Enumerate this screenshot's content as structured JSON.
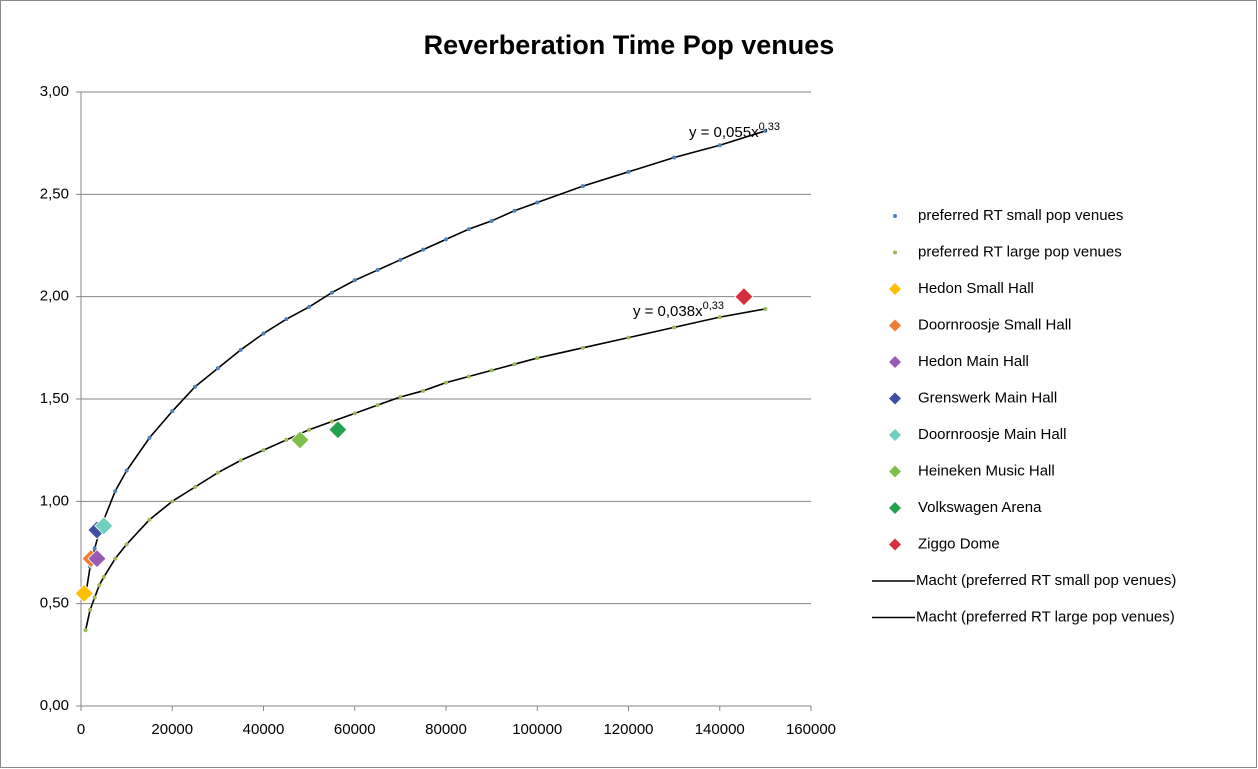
{
  "chart_data": {
    "type": "scatter",
    "title": "Reverberation Time Pop venues",
    "xlim": [
      0,
      160000
    ],
    "xticks": [
      0,
      20000,
      40000,
      60000,
      80000,
      100000,
      120000,
      140000,
      160000
    ],
    "ylim": [
      0,
      3
    ],
    "yticks": [
      {
        "value": 0,
        "label": "0,00"
      },
      {
        "value": 0.5,
        "label": "0,50"
      },
      {
        "value": 1,
        "label": "1,00"
      },
      {
        "value": 1.5,
        "label": "1,50"
      },
      {
        "value": 2,
        "label": "2,00"
      },
      {
        "value": 2.5,
        "label": "2,50"
      },
      {
        "value": 3,
        "label": "3,00"
      }
    ],
    "grid": true,
    "legend": "right",
    "annotations": [
      {
        "text": "y = 0,055x",
        "exponent": "0,33"
      },
      {
        "text": "y = 0,038x",
        "exponent": "0,33"
      }
    ],
    "series": [
      {
        "name": "preferred RT small pop venues",
        "color": "#4f81bd",
        "marker": "dot",
        "x": [
          1000,
          2000,
          3000,
          4000,
          5000,
          7500,
          10000,
          15000,
          20000,
          25000,
          30000,
          35000,
          40000,
          45000,
          50000,
          55000,
          60000,
          65000,
          70000,
          75000,
          80000,
          85000,
          90000,
          95000,
          100000,
          110000,
          120000,
          130000,
          140000,
          150000
        ],
        "values": [
          0.54,
          0.68,
          0.77,
          0.85,
          0.91,
          1.05,
          1.15,
          1.31,
          1.44,
          1.56,
          1.65,
          1.74,
          1.82,
          1.89,
          1.95,
          2.02,
          2.08,
          2.13,
          2.18,
          2.23,
          2.28,
          2.33,
          2.37,
          2.42,
          2.46,
          2.54,
          2.61,
          2.68,
          2.74,
          2.81
        ]
      },
      {
        "name": "preferred RT large pop venues",
        "color": "#9bbb59",
        "marker": "dot",
        "x": [
          1000,
          2000,
          3000,
          4000,
          5000,
          7500,
          10000,
          15000,
          20000,
          25000,
          30000,
          35000,
          40000,
          45000,
          50000,
          55000,
          60000,
          65000,
          70000,
          75000,
          80000,
          85000,
          90000,
          95000,
          100000,
          110000,
          120000,
          130000,
          140000,
          150000
        ],
        "values": [
          0.37,
          0.47,
          0.53,
          0.59,
          0.63,
          0.72,
          0.79,
          0.91,
          1.0,
          1.07,
          1.14,
          1.2,
          1.25,
          1.3,
          1.35,
          1.39,
          1.43,
          1.47,
          1.51,
          1.54,
          1.58,
          1.61,
          1.64,
          1.67,
          1.7,
          1.75,
          1.8,
          1.85,
          1.9,
          1.94
        ]
      },
      {
        "name": "Hedon Small Hall",
        "color": "#ffc000",
        "marker": "diamond",
        "x": [
          700
        ],
        "values": [
          0.55
        ]
      },
      {
        "name": "Doornroosje Small Hall",
        "color": "#ed7d31",
        "marker": "diamond",
        "x": [
          2200
        ],
        "values": [
          0.72
        ]
      },
      {
        "name": "Hedon Main Hall",
        "color": "#9b59b6",
        "marker": "diamond",
        "x": [
          3500
        ],
        "values": [
          0.72
        ]
      },
      {
        "name": "Grenswerk Main Hall",
        "color": "#3e4f9f",
        "marker": "diamond",
        "x": [
          3500
        ],
        "values": [
          0.86
        ]
      },
      {
        "name": "Doornroosje Main Hall",
        "color": "#6fcfc0",
        "marker": "diamond",
        "x": [
          5000
        ],
        "values": [
          0.88
        ]
      },
      {
        "name": "Heineken Music Hall",
        "color": "#7ec04b",
        "marker": "diamond",
        "x": [
          48000
        ],
        "values": [
          1.3
        ]
      },
      {
        "name": "Volkswagen Arena",
        "color": "#23a24d",
        "marker": "diamond",
        "x": [
          56300
        ],
        "values": [
          1.35
        ]
      },
      {
        "name": "Ziggo Dome",
        "color": "#d32f3c",
        "marker": "diamond",
        "x": [
          145300
        ],
        "values": [
          2.0
        ]
      },
      {
        "name": "Macht (preferred RT small pop venues)",
        "color": "#000000",
        "marker": "line",
        "x": [
          1000,
          2000,
          3000,
          4000,
          5000,
          7500,
          10000,
          15000,
          20000,
          25000,
          30000,
          35000,
          40000,
          45000,
          50000,
          55000,
          60000,
          65000,
          70000,
          75000,
          80000,
          85000,
          90000,
          95000,
          100000,
          110000,
          120000,
          130000,
          140000,
          150000
        ],
        "values": [
          0.54,
          0.68,
          0.77,
          0.85,
          0.91,
          1.05,
          1.15,
          1.31,
          1.44,
          1.56,
          1.65,
          1.74,
          1.82,
          1.89,
          1.95,
          2.02,
          2.08,
          2.13,
          2.18,
          2.23,
          2.28,
          2.33,
          2.37,
          2.42,
          2.46,
          2.54,
          2.61,
          2.68,
          2.74,
          2.81
        ]
      },
      {
        "name": "Macht (preferred RT large pop venues)",
        "color": "#000000",
        "marker": "line",
        "x": [
          1000,
          2000,
          3000,
          4000,
          5000,
          7500,
          10000,
          15000,
          20000,
          25000,
          30000,
          35000,
          40000,
          45000,
          50000,
          55000,
          60000,
          65000,
          70000,
          75000,
          80000,
          85000,
          90000,
          95000,
          100000,
          110000,
          120000,
          130000,
          140000,
          150000
        ],
        "values": [
          0.37,
          0.47,
          0.53,
          0.59,
          0.63,
          0.72,
          0.79,
          0.91,
          1.0,
          1.07,
          1.14,
          1.2,
          1.25,
          1.3,
          1.35,
          1.39,
          1.43,
          1.47,
          1.51,
          1.54,
          1.58,
          1.61,
          1.64,
          1.67,
          1.7,
          1.75,
          1.8,
          1.85,
          1.9,
          1.94
        ]
      }
    ]
  }
}
